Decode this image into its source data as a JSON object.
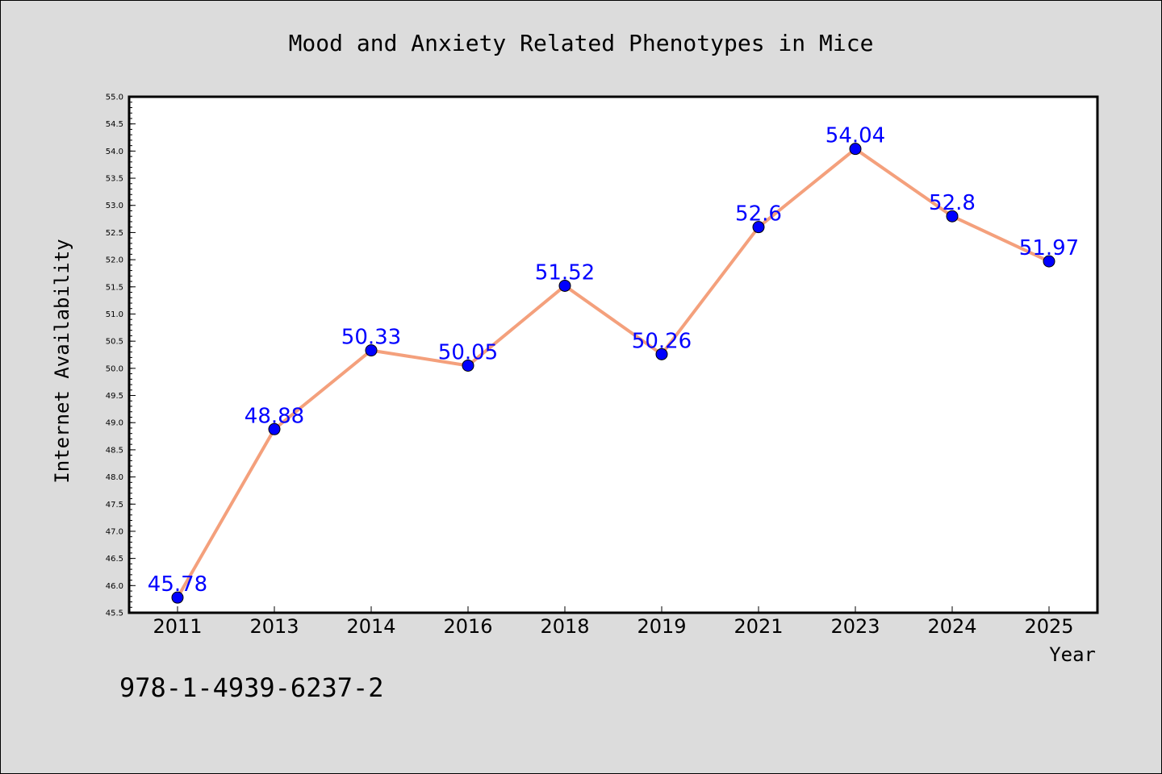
{
  "chart_data": {
    "type": "line",
    "title": "Mood and Anxiety Related Phenotypes in Mice",
    "xlabel": "Year",
    "ylabel": "Internet Availability",
    "categories": [
      "2011",
      "2013",
      "2014",
      "2016",
      "2018",
      "2019",
      "2021",
      "2023",
      "2024",
      "2025"
    ],
    "values": [
      45.78,
      48.88,
      50.33,
      50.05,
      51.52,
      50.26,
      52.6,
      54.04,
      52.8,
      51.97
    ],
    "data_labels": [
      "45.78",
      "48.88",
      "50.33",
      "50.05",
      "51.52",
      "50.26",
      "52.6",
      "54.04",
      "52.8",
      "51.97"
    ],
    "ylim": [
      45.5,
      55.0
    ],
    "yticks": [
      "45.5",
      "46.0",
      "46.5",
      "47.0",
      "47.5",
      "48.0",
      "48.5",
      "49.0",
      "49.5",
      "50.0",
      "50.5",
      "51.0",
      "51.5",
      "52.0",
      "52.5",
      "53.0",
      "53.5",
      "54.0",
      "54.5",
      "55.0"
    ],
    "grid": false,
    "legend": "none",
    "colors": {
      "line": "#f4a07c",
      "marker": "#0000ff",
      "label": "#0000ff",
      "background": "#dcdcdc",
      "plot_area": "#ffffff"
    }
  },
  "footer_code": "978-1-4939-6237-2"
}
